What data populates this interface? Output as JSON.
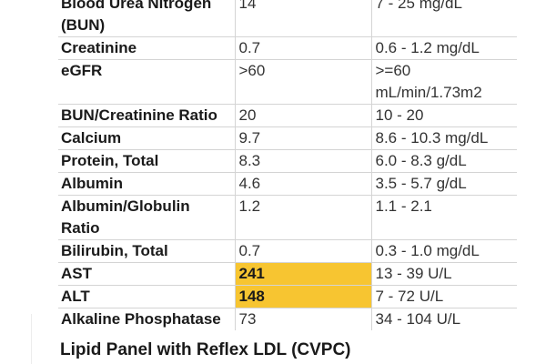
{
  "results": [
    {
      "name": "Blood Urea Nitrogen (BUN)",
      "value": "14",
      "range": "7 - 25 mg/dL",
      "flag": false
    },
    {
      "name": "Creatinine",
      "value": "0.7",
      "range": "0.6 - 1.2 mg/dL",
      "flag": false
    },
    {
      "name": "eGFR",
      "value": ">60",
      "range": ">=60 mL/min/1.73m2",
      "flag": false
    },
    {
      "name": "BUN/Creatinine Ratio",
      "value": "20",
      "range": "10 - 20",
      "flag": false
    },
    {
      "name": "Calcium",
      "value": "9.7",
      "range": "8.6 - 10.3 mg/dL",
      "flag": false
    },
    {
      "name": "Protein, Total",
      "value": "8.3",
      "range": "6.0 - 8.3 g/dL",
      "flag": false
    },
    {
      "name": "Albumin",
      "value": "4.6",
      "range": "3.5 - 5.7 g/dL",
      "flag": false
    },
    {
      "name": "Albumin/Globulin Ratio",
      "value": "1.2",
      "range": "1.1 - 2.1",
      "flag": false
    },
    {
      "name": "Bilirubin, Total",
      "value": "0.7",
      "range": "0.3 - 1.0 mg/dL",
      "flag": false
    },
    {
      "name": "AST",
      "value": "241",
      "range": "13 - 39 U/L",
      "flag": true
    },
    {
      "name": "ALT",
      "value": "148",
      "range": "7 - 72 U/L",
      "flag": true
    },
    {
      "name": "Alkaline Phosphatase",
      "value": "73",
      "range": "34 - 104 U/L",
      "flag": false
    }
  ],
  "next_section": {
    "title": "Lipid Panel with Reflex LDL (CVPC)"
  },
  "colors": {
    "flag_highlight": "#f7c531",
    "grid": "#d4d4d4"
  }
}
